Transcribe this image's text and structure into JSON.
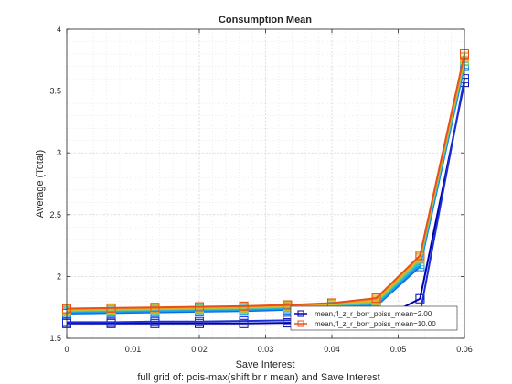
{
  "chart_data": {
    "type": "line",
    "title": "Consumption Mean",
    "xlabel": "Save Interest",
    "ylabel": "Average (Total)",
    "caption": "full grid of: pois-max(shift br r mean) and Save Interest",
    "xlim": [
      0,
      0.06
    ],
    "ylim": [
      1.5,
      4
    ],
    "xticks": [
      0,
      0.01,
      0.02,
      0.03,
      0.04,
      0.05,
      0.06
    ],
    "xtick_labels": [
      "0",
      "0.01",
      "0.02",
      "0.03",
      "0.04",
      "0.05",
      "0.06"
    ],
    "yticks": [
      1.5,
      2,
      2.5,
      3,
      3.5,
      4
    ],
    "ytick_labels": [
      "1.5",
      "2",
      "2.5",
      "3",
      "3.5",
      "4"
    ],
    "grid": true,
    "minor_grid": true,
    "x": [
      0,
      0.0067,
      0.0133,
      0.02,
      0.0267,
      0.0333,
      0.04,
      0.0467,
      0.0533,
      0.06
    ],
    "series": [
      {
        "name": "mean,fl_z_r_borr_poiss_mean=2.00",
        "color": "#0000a8",
        "marker": "square",
        "in_legend": true,
        "values": [
          1.62,
          1.62,
          1.62,
          1.62,
          1.62,
          1.625,
          1.63,
          1.64,
          1.82,
          3.57
        ]
      },
      {
        "name": "s2",
        "color": "#1a2fd6",
        "in_legend": false,
        "values": [
          1.63,
          1.63,
          1.635,
          1.635,
          1.64,
          1.645,
          1.65,
          1.66,
          1.7,
          3.6
        ]
      },
      {
        "name": "s3",
        "color": "#0a6ee6",
        "in_legend": false,
        "values": [
          1.7,
          1.705,
          1.71,
          1.715,
          1.72,
          1.73,
          1.74,
          1.76,
          2.08,
          3.7
        ]
      },
      {
        "name": "s4",
        "color": "#18a0e8",
        "in_legend": false,
        "values": [
          1.71,
          1.715,
          1.72,
          1.725,
          1.73,
          1.74,
          1.75,
          1.77,
          2.1,
          3.72
        ]
      },
      {
        "name": "s5",
        "color": "#3cc0c8",
        "in_legend": false,
        "values": [
          1.72,
          1.725,
          1.73,
          1.735,
          1.74,
          1.75,
          1.76,
          1.785,
          2.12,
          3.74
        ]
      },
      {
        "name": "s6",
        "color": "#90c850",
        "in_legend": false,
        "values": [
          1.725,
          1.73,
          1.735,
          1.74,
          1.745,
          1.755,
          1.77,
          1.795,
          2.14,
          3.75
        ]
      },
      {
        "name": "s7",
        "color": "#d8bc28",
        "in_legend": false,
        "values": [
          1.73,
          1.735,
          1.74,
          1.745,
          1.75,
          1.76,
          1.775,
          1.805,
          2.15,
          3.77
        ]
      },
      {
        "name": "s8",
        "color": "#f0a020",
        "in_legend": false,
        "values": [
          1.735,
          1.74,
          1.745,
          1.75,
          1.755,
          1.765,
          1.78,
          1.815,
          2.16,
          3.78
        ]
      },
      {
        "name": "mean,fl_z_r_borr_poiss_mean=10.00",
        "color": "#e8501a",
        "marker": "square",
        "in_legend": true,
        "values": [
          1.74,
          1.745,
          1.75,
          1.755,
          1.76,
          1.77,
          1.785,
          1.825,
          2.17,
          3.8
        ]
      }
    ],
    "legend_location": "bottom-right"
  }
}
